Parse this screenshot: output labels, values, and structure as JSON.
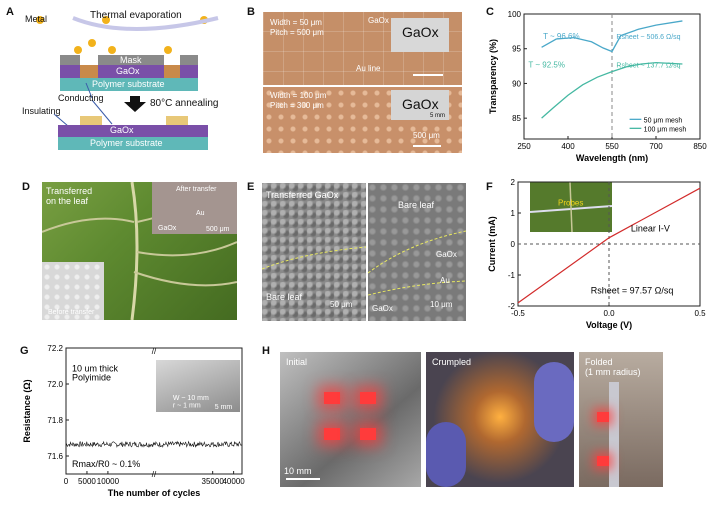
{
  "panels": {
    "A": {
      "label": "A",
      "metal": "Metal",
      "thermal": "Thermal evaporation",
      "mask": "Mask",
      "gaox_top": "GaOx",
      "substrate_top": "Polymer substrate",
      "conducting": "Conducting",
      "insulating": "Insulating",
      "annealing": "80°C annealing",
      "gaox_bottom": "GaOx",
      "substrate_bottom": "Polymer substrate",
      "colors": {
        "mask": "#8a8a8a",
        "gaox": "#7a4fa8",
        "substrate": "#5fb8b8",
        "metal": "#f2b21b",
        "conducting": "#c98a4a"
      }
    },
    "B": {
      "label": "B",
      "top": {
        "width": "Width = 50 μm",
        "pitch": "Pitch = 500 μm",
        "gaox": "GaOx",
        "au": "Au line",
        "inset": "GaOx"
      },
      "bottom": {
        "width": "Width = 100 μm",
        "pitch": "Pitch = 300 μm",
        "inset": "GaOx",
        "inset_scale": "5 mm",
        "scale": "500 μm"
      }
    },
    "D": {
      "label": "D",
      "transferred": "Transferred",
      "on_leaf": "on the leaf",
      "after": "After transfer",
      "gaox": "GaOx",
      "au": "Au",
      "scale": "500 μm",
      "before": "Before transfer"
    },
    "E": {
      "label": "E",
      "transferred": "Transferred GaOx",
      "bare_left": "Bare leaf",
      "scale_left": "50 μm",
      "bare_right": "Bare leaf",
      "gaox": "GaOx",
      "au": "Au",
      "gaox_bottom": "GaOx",
      "scale_right": "10 μm"
    },
    "G": {
      "label": "G"
    },
    "H": {
      "label": "H",
      "initial": "Initial",
      "crumpled": "Crumpled",
      "folded": "Folded",
      "radius": "(1 mm radius)",
      "scale": "10 mm"
    }
  },
  "chart_data": [
    {
      "id": "C",
      "type": "line",
      "label": "C",
      "xlabel": "Wavelength (nm)",
      "ylabel": "Transparency (%)",
      "xlim": [
        250,
        850
      ],
      "ylim": [
        82,
        100
      ],
      "xticks": [
        250,
        400,
        550,
        700,
        850
      ],
      "yticks": [
        85,
        90,
        95,
        100
      ],
      "vline": 550,
      "series": [
        {
          "name": "50 μm mesh",
          "color": "#4aa8c9",
          "x": [
            310,
            360,
            420,
            480,
            520,
            550,
            580,
            640,
            700,
            790
          ],
          "y": [
            95.2,
            96.4,
            96.6,
            96.0,
            95.1,
            94.6,
            96.9,
            97.8,
            98.4,
            99.0
          ]
        },
        {
          "name": "100 μm mesh",
          "color": "#45b8a2",
          "x": [
            310,
            350,
            400,
            450,
            500,
            550,
            600,
            650,
            700,
            790
          ],
          "y": [
            85.0,
            86.5,
            88.3,
            89.8,
            90.9,
            91.7,
            92.4,
            92.8,
            93.0,
            92.8
          ]
        }
      ],
      "annotations": {
        "t1": "T ~ 96.6%",
        "r1": "Rsheet ~ 506.6 Ω/sq",
        "t2": "T ~ 92.5%",
        "r2": "Rsheet ~ 137.7 Ω/sq"
      },
      "legend": "bottom-right"
    },
    {
      "id": "F",
      "type": "line",
      "label": "F",
      "xlabel": "Voltage (V)",
      "ylabel": "Current (mA)",
      "xlim": [
        -0.5,
        0.5
      ],
      "ylim": [
        -2,
        2
      ],
      "xticks": [
        -0.5,
        0.0,
        0.5
      ],
      "xtick_labels": [
        "-0.5",
        "0.0",
        "0.5"
      ],
      "yticks": [
        -2,
        -1,
        0,
        1,
        2
      ],
      "series": [
        {
          "name": "I-V",
          "color": "#d22b2b",
          "x": [
            -0.5,
            0.0,
            0.5
          ],
          "y": [
            -1.9,
            0.2,
            1.8
          ]
        }
      ],
      "annotations": {
        "linear": "Linear I-V",
        "rsheet": "Rsheet = 97.57 Ω/sq",
        "probes": "Probes"
      }
    },
    {
      "id": "G",
      "type": "line",
      "label": "G",
      "xlabel": "The number of cycles",
      "ylabel": "Resistance (Ω)",
      "xlim": [
        0,
        42000
      ],
      "ylim": [
        71.5,
        72.2
      ],
      "xticks": [
        0,
        5000,
        10000,
        35000,
        40000
      ],
      "xtick_labels": [
        "0",
        "5000",
        "10000",
        "35000",
        "40000"
      ],
      "yticks": [
        71.6,
        71.8,
        72.0,
        72.2
      ],
      "ytick_labels": [
        "71.6",
        "71.8",
        "72.0",
        "72.2"
      ],
      "series": [
        {
          "name": "Resistance",
          "color": "#111111",
          "mean": 71.665,
          "noise": 0.015
        }
      ],
      "annotations": {
        "thick": "10 um thick",
        "material": "Polyimide",
        "ratio": "Rmax/R0 ~ 0.1%",
        "w": "W ~ 10 mm",
        "r": "r ~ 1 mm",
        "scale": "5 mm"
      }
    }
  ]
}
